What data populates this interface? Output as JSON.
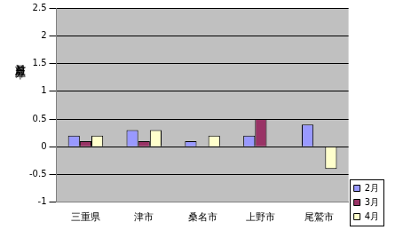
{
  "chart_data": {
    "type": "bar",
    "y_label": "対前月上昇率",
    "categories": [
      "三重県",
      "津市",
      "桑名市",
      "上野市",
      "尾鷲市"
    ],
    "series": [
      {
        "name": "2月",
        "color": "#9999ff",
        "values": [
          0.2,
          0.3,
          0.1,
          0.2,
          0.4
        ]
      },
      {
        "name": "3月",
        "color": "#993366",
        "values": [
          0.1,
          0.1,
          0,
          0.5,
          0
        ]
      },
      {
        "name": "4月",
        "color": "#ffffcc",
        "values": [
          0.2,
          0.3,
          0.2,
          0,
          -0.4
        ]
      }
    ],
    "ylim": [
      -1,
      2.5
    ],
    "yticks": [
      -1,
      -0.5,
      0,
      0.5,
      1,
      1.5,
      2,
      2.5
    ],
    "grid": true,
    "legend": "lower right"
  }
}
